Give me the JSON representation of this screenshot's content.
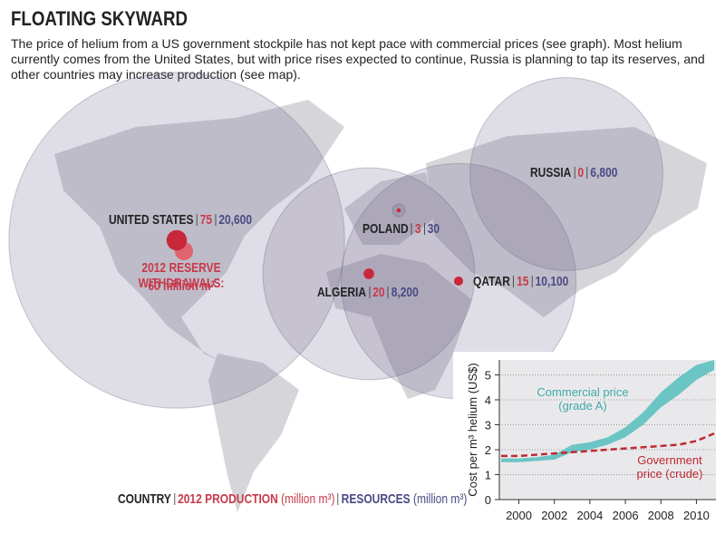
{
  "header": {
    "title": "FLOATING SKYWARD",
    "text": "The price of helium from a US government stockpile has not kept pace with commercial prices (see graph). Most helium currently comes from the United States, but with price rises expected to continue, Russia is planning to tap its reserves, and other countries may increase production (see map)."
  },
  "map": {
    "countries": [
      "UNITED STATES",
      "RUSSIA",
      "POLAND",
      "ALGERIA",
      "QATAR"
    ],
    "production": [
      75,
      0,
      3,
      20,
      15
    ],
    "resources": [
      20600,
      6800,
      30,
      8200,
      10100
    ],
    "resources_labels": [
      "20,600",
      "6,800",
      "30",
      "8,200",
      "10,100"
    ],
    "reserve_withdrawals": {
      "label": "2012 RESERVE WITHDRAWALS:",
      "value": 60,
      "value_label": "60 million m³"
    }
  },
  "legend": {
    "country": "COUNTRY",
    "production": "2012 PRODUCTION",
    "production_unit": "(million m³)",
    "resources": "RESOURCES",
    "resources_unit": "(million m³)"
  },
  "chart_data": {
    "type": "line",
    "y_label": "Cost per m³ helium (US$)",
    "x": [
      1999,
      2000,
      2001,
      2002,
      2003,
      2004,
      2005,
      2006,
      2007,
      2008,
      2009,
      2010,
      2011
    ],
    "series": [
      {
        "name": "Commercial price (grade A)",
        "color": "#6cc5c5",
        "low": [
          1.5,
          1.5,
          1.55,
          1.6,
          1.9,
          2.0,
          2.2,
          2.5,
          3.0,
          3.7,
          4.2,
          4.8,
          5.2
        ],
        "high": [
          1.65,
          1.65,
          1.7,
          1.8,
          2.2,
          2.3,
          2.5,
          2.9,
          3.5,
          4.3,
          4.9,
          5.4,
          5.6
        ]
      },
      {
        "name": "Government price (crude)",
        "color": "#c0292f",
        "values": [
          1.75,
          1.75,
          1.8,
          1.85,
          1.9,
          1.95,
          2.0,
          2.05,
          2.1,
          2.15,
          2.2,
          2.35,
          2.65
        ]
      }
    ],
    "xlim": [
      1998.9,
      2011.1
    ],
    "xticks": [
      2000,
      2002,
      2004,
      2006,
      2008,
      2010
    ],
    "ylim": [
      0,
      5.6
    ],
    "yticks": [
      0,
      1,
      2,
      3,
      4,
      5
    ],
    "grid": true
  }
}
